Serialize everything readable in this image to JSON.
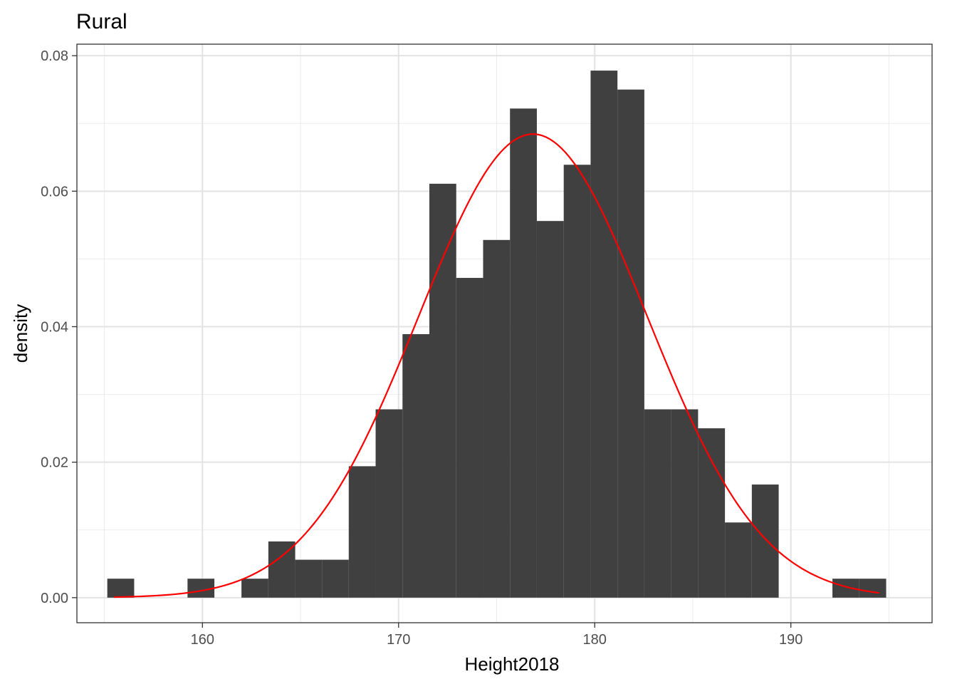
{
  "chart_data": {
    "type": "bar",
    "title": "Rural",
    "xlabel": "Height2018",
    "ylabel": "density",
    "xlim": [
      153.6,
      197.2
    ],
    "ylim": [
      -0.0037,
      0.0817
    ],
    "xticks": [
      "160",
      "170",
      "180",
      "190"
    ],
    "yticks": [
      "0.00",
      "0.02",
      "0.04",
      "0.06",
      "0.08"
    ],
    "grid": true,
    "bin_width": 1.37,
    "bins": [
      {
        "x0": 155.15,
        "x1": 156.52,
        "density": 0.0028
      },
      {
        "x0": 159.24,
        "x1": 160.61,
        "density": 0.0028
      },
      {
        "x0": 161.99,
        "x1": 163.36,
        "density": 0.0028
      },
      {
        "x0": 163.36,
        "x1": 164.73,
        "density": 0.0083
      },
      {
        "x0": 164.73,
        "x1": 166.1,
        "density": 0.0056
      },
      {
        "x0": 166.1,
        "x1": 167.46,
        "density": 0.0056
      },
      {
        "x0": 167.46,
        "x1": 168.83,
        "density": 0.0194
      },
      {
        "x0": 168.83,
        "x1": 170.2,
        "density": 0.0278
      },
      {
        "x0": 170.2,
        "x1": 171.57,
        "density": 0.0389
      },
      {
        "x0": 171.57,
        "x1": 172.94,
        "density": 0.0611
      },
      {
        "x0": 172.94,
        "x1": 174.31,
        "density": 0.0472
      },
      {
        "x0": 174.31,
        "x1": 175.68,
        "density": 0.0528
      },
      {
        "x0": 175.68,
        "x1": 177.05,
        "density": 0.0722
      },
      {
        "x0": 177.05,
        "x1": 178.42,
        "density": 0.0556
      },
      {
        "x0": 178.42,
        "x1": 179.79,
        "density": 0.0639
      },
      {
        "x0": 179.79,
        "x1": 181.16,
        "density": 0.0778
      },
      {
        "x0": 181.16,
        "x1": 182.53,
        "density": 0.075
      },
      {
        "x0": 182.53,
        "x1": 183.9,
        "density": 0.0278
      },
      {
        "x0": 183.9,
        "x1": 185.27,
        "density": 0.0278
      },
      {
        "x0": 185.27,
        "x1": 186.64,
        "density": 0.025
      },
      {
        "x0": 186.64,
        "x1": 188.01,
        "density": 0.0111
      },
      {
        "x0": 188.01,
        "x1": 189.38,
        "density": 0.0167
      },
      {
        "x0": 192.12,
        "x1": 193.49,
        "density": 0.0028
      },
      {
        "x0": 193.49,
        "x1": 194.86,
        "density": 0.0028
      }
    ],
    "normal_curve": {
      "mean": 176.85,
      "sd": 5.83,
      "x_from": 155.5,
      "x_to": 194.5,
      "color": "#ff0000"
    },
    "bar_color": "#404040"
  }
}
